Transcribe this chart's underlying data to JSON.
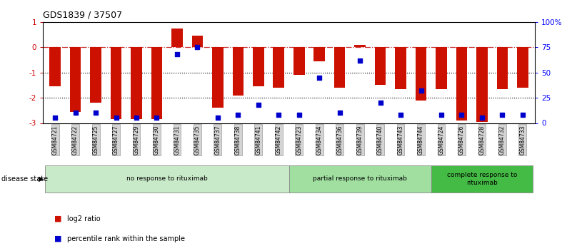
{
  "title": "GDS1839 / 37507",
  "samples": [
    "GSM84721",
    "GSM84722",
    "GSM84725",
    "GSM84727",
    "GSM84729",
    "GSM84730",
    "GSM84731",
    "GSM84735",
    "GSM84737",
    "GSM84738",
    "GSM84741",
    "GSM84742",
    "GSM84723",
    "GSM84734",
    "GSM84736",
    "GSM84739",
    "GSM84740",
    "GSM84743",
    "GSM84744",
    "GSM84724",
    "GSM84726",
    "GSM84728",
    "GSM84732",
    "GSM84733"
  ],
  "log2_ratio": [
    -1.55,
    -2.55,
    -2.2,
    -2.85,
    -2.85,
    -2.85,
    0.75,
    0.45,
    -2.4,
    -1.9,
    -1.55,
    -1.6,
    -1.1,
    -0.55,
    -1.6,
    0.1,
    -1.5,
    -1.65,
    -2.1,
    -1.65,
    -2.9,
    -2.95,
    -1.65,
    -1.6
  ],
  "percentile": [
    5,
    10,
    10,
    5,
    5,
    5,
    68,
    75,
    5,
    8,
    18,
    8,
    8,
    45,
    10,
    62,
    20,
    8,
    32,
    8,
    8,
    5,
    8,
    8
  ],
  "groups": [
    {
      "label": "no response to rituximab",
      "start": 0,
      "end": 12,
      "color": "#c8eac8"
    },
    {
      "label": "partial response to rituximab",
      "start": 12,
      "end": 19,
      "color": "#a0dfa0"
    },
    {
      "label": "complete response to\nrituximab",
      "start": 19,
      "end": 24,
      "color": "#44bb44"
    }
  ],
  "bar_color": "#cc1100",
  "square_color": "#0000cc",
  "ylim_left": [
    -3.0,
    1.0
  ],
  "ylim_right": [
    0,
    100
  ],
  "yticks_left": [
    -3,
    -2,
    -1,
    0,
    1
  ],
  "yticks_right": [
    0,
    25,
    50,
    75,
    100
  ],
  "ytick_labels_right": [
    "0",
    "25",
    "50",
    "75",
    "100%"
  ],
  "hline_y": 0,
  "dotted_lines": [
    -1,
    -2
  ],
  "background_color": "#ffffff",
  "legend_labels": [
    "log2 ratio",
    "percentile rank within the sample"
  ],
  "disease_state_label": "disease state"
}
